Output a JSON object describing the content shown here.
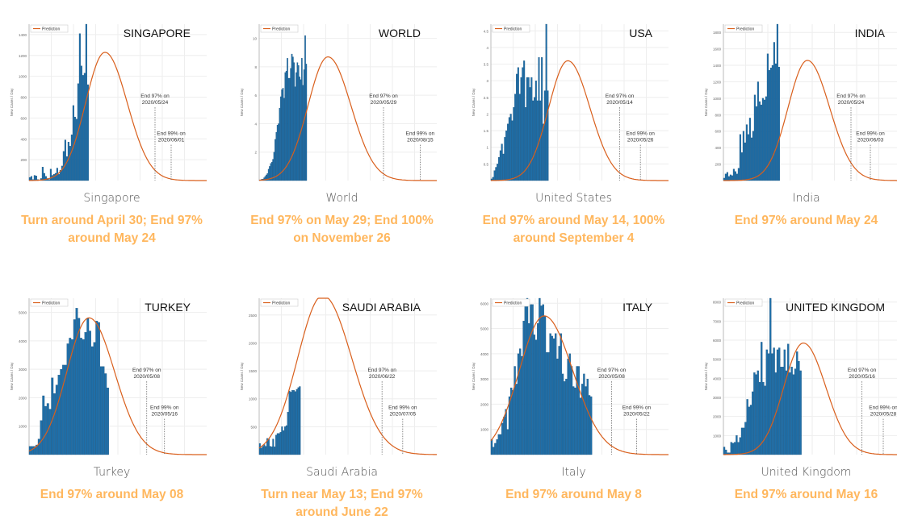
{
  "colors": {
    "bar": "#1f6fa9",
    "bar_edge": "#174f7a",
    "curve": "#d95f1c",
    "summary": "#ffb75e",
    "grid": "#eeeeee"
  },
  "chart_data": [
    {
      "type": "bar",
      "title": "SINGAPORE",
      "country": "Singapore",
      "summary": "Turn around April 30; End 97% around May 24",
      "legend": "Prediction",
      "ylabel": "New Cases / Day",
      "yticks": [
        200,
        400,
        600,
        800,
        1000,
        1200,
        1400
      ],
      "ylim": [
        0,
        1500
      ],
      "xdays": 110,
      "values": [
        30,
        40,
        10,
        50,
        45,
        10,
        0,
        20,
        130,
        70,
        40,
        20,
        10,
        110,
        50,
        60,
        70,
        120,
        60,
        100,
        140,
        280,
        390,
        230,
        370,
        330,
        440,
        720,
        610,
        590,
        930,
        1410,
        1100,
        1010,
        1030,
        1600,
        920
      ],
      "peak_day": 47,
      "peak_value": 1230,
      "sigma": 12,
      "end97": "2020/05/24",
      "end97_day": 78,
      "end99": "2020/06/01",
      "end99_day": 88,
      "end97_label": "End 97% on",
      "end99_label": "End 99% on"
    },
    {
      "type": "bar",
      "title": "WORLD",
      "country": "World",
      "summary": "End 97% on May 29; End 100% on November 26",
      "legend": "Prediction",
      "ylabel": "New Cases / Day",
      "yticks": [
        2,
        4,
        6,
        8,
        10
      ],
      "ylim": [
        0,
        11
      ],
      "xdays": 160,
      "values": [
        0.05,
        0.05,
        0.1,
        0.1,
        0.2,
        0.3,
        0.4,
        0.5,
        0.8,
        1.0,
        1.2,
        1.3,
        1.5,
        2.0,
        2.9,
        3.4,
        3.9,
        4.0,
        5.1,
        5.9,
        6.4,
        6.5,
        5.8,
        7.6,
        7.7,
        8.6,
        7.2,
        7.2,
        7.9,
        8.9,
        8.7,
        8.3,
        6.6,
        7.6,
        8.3,
        8.1,
        7.3,
        7.1,
        8.6,
        6.7,
        7.8,
        10.2,
        8.2
      ],
      "peak_day": 62,
      "peak_value": 8.7,
      "sigma": 18,
      "end97": "2020/05/29",
      "end97_day": 112,
      "end99": "2020/08/15",
      "end99_day": 145,
      "end97_label": "End 97% on",
      "end99_label": "End 99% on"
    },
    {
      "type": "bar",
      "title": "USA",
      "country": "United States",
      "summary": "End 97% around May 14, 100% around September 4",
      "legend": "Prediction",
      "ylabel": "New Cases / Day",
      "yticks": [
        0.5,
        1,
        1.5,
        2,
        2.5,
        3,
        3.5,
        4,
        4.5
      ],
      "ylim": [
        0,
        4.7
      ],
      "xdays": 120,
      "values": [
        0.05,
        0.1,
        0.3,
        0.4,
        0.5,
        0.7,
        0.9,
        1.1,
        0.8,
        1.3,
        1.5,
        1.7,
        1.9,
        2.0,
        1.8,
        2.2,
        2.6,
        3.2,
        3.4,
        2.6,
        3.1,
        3.4,
        3.6,
        2.2,
        3.1,
        3.1,
        2.8,
        3.1,
        2.4,
        2.5,
        3.0,
        2.4,
        3.7,
        2.4,
        3.7,
        1.7,
        2.7,
        4.8,
        2.7
      ],
      "peak_day": 52,
      "peak_value": 3.6,
      "sigma": 13,
      "end97": "2020/05/14",
      "end97_day": 87,
      "end99": "2020/05/26",
      "end99_day": 101,
      "end97_label": "End 97% on",
      "end99_label": "End 99% on"
    },
    {
      "type": "bar",
      "title": "INDIA",
      "country": "India",
      "summary": "End 97% around May 24",
      "legend": "Prediction",
      "ylabel": "New Cases / Day",
      "yticks": [
        200,
        400,
        600,
        800,
        1000,
        1200,
        1400,
        1600,
        1800
      ],
      "ylim": [
        0,
        1900
      ],
      "xdays": 110,
      "values": [
        30,
        80,
        100,
        50,
        70,
        60,
        140,
        110,
        80,
        150,
        560,
        340,
        600,
        460,
        680,
        560,
        760,
        520,
        600,
        1040,
        900,
        1200,
        960,
        920,
        1000,
        980,
        1020,
        1540,
        1340,
        1370,
        1400,
        1680,
        1420,
        1900,
        1380
      ],
      "peak_day": 52,
      "peak_value": 1460,
      "sigma": 12,
      "end97": "2020/05/24",
      "end97_day": 79,
      "end99": "2020/06/03",
      "end99_day": 91,
      "end97_label": "End 97% on",
      "end99_label": "End 99% on"
    },
    {
      "type": "bar",
      "title": "TURKEY",
      "country": "Turkey",
      "summary": "End 97% around May 08",
      "legend": "Prediction",
      "ylabel": "New Cases / Day",
      "yticks": [
        1000,
        2000,
        3000,
        4000,
        5000
      ],
      "ylim": [
        0,
        5500
      ],
      "xdays": 80,
      "values": [
        290,
        290,
        290,
        340,
        550,
        1200,
        2070,
        1700,
        1800,
        1600,
        2700,
        2150,
        2450,
        2800,
        3000,
        3150,
        3150,
        3900,
        4100,
        4050,
        4750,
        5150,
        4800,
        4100,
        4050,
        4300,
        4800,
        4350,
        3800,
        3950,
        4700,
        4650,
        3100,
        3100,
        2850,
        2350
      ],
      "peak_day": 27,
      "peak_value": 4810,
      "sigma": 10,
      "end97": "2020/05/08",
      "end97_day": 53,
      "end99": "2020/05/16",
      "end99_day": 61,
      "end97_label": "End 97% on",
      "end99_label": "End 99% on"
    },
    {
      "type": "bar",
      "title": "SAUDI ARABIA",
      "country": "Saudi Arabia",
      "summary": "Turn near May 13; End 97% around June 22",
      "legend": "Prediction",
      "ylabel": "New Cases / Day",
      "yticks": [
        500,
        1000,
        1500,
        2000,
        2500
      ],
      "ylim": [
        0,
        2800
      ],
      "xdays": 120,
      "values": [
        200,
        120,
        150,
        180,
        150,
        290,
        280,
        150,
        140,
        280,
        140,
        350,
        380,
        380,
        400,
        500,
        430,
        500,
        520,
        760,
        1140,
        1120,
        1150,
        1150,
        1130,
        1170,
        1200,
        1220
      ],
      "peak_day": 43,
      "peak_value": 2850,
      "sigma": 17,
      "end97": "2020/06/22",
      "end97_day": 83,
      "end99": "2020/07/05",
      "end99_day": 97,
      "end97_label": "End 97% on",
      "end99_label": "End 99% on"
    },
    {
      "type": "bar",
      "title": "ITALY",
      "country": "Italy",
      "summary": "End 97% around May 8",
      "legend": "Prediction",
      "ylabel": "New Cases / Day",
      "yticks": [
        1000,
        2000,
        3000,
        4000,
        5000,
        6000
      ],
      "ylim": [
        0,
        6200
      ],
      "xdays": 100,
      "values": [
        600,
        300,
        450,
        600,
        800,
        800,
        1250,
        1500,
        1800,
        1000,
        2300,
        2650,
        2550,
        3500,
        2800,
        4000,
        4200,
        3900,
        5300,
        5900,
        6550,
        5200,
        5950,
        5950,
        4750,
        4550,
        5200,
        6200,
        5900,
        5950,
        5500,
        4050,
        4050,
        4800,
        4700,
        4600,
        4800,
        3800,
        4300,
        4800,
        3200,
        2900,
        3000,
        3800,
        4000,
        3500,
        2700,
        2650,
        3500,
        3500,
        2250,
        2800,
        3200,
        2700,
        3000,
        2350,
        2300
      ],
      "peak_day": 30,
      "peak_value": 5500,
      "sigma": 14,
      "end97": "2020/05/08",
      "end97_day": 68,
      "end99": "2020/05/22",
      "end99_day": 82,
      "end97_label": "End 97% on",
      "end99_label": "End 99% on"
    },
    {
      "type": "bar",
      "title": "UNITED KINGDOM",
      "country": "United Kingdom",
      "summary": "End 97% around May 16",
      "legend": "Prediction",
      "ylabel": "New Cases / Day",
      "yticks": [
        1000,
        2000,
        3000,
        4000,
        5000,
        6000,
        7000,
        8000
      ],
      "ylim": [
        0,
        8200
      ],
      "xdays": 100,
      "values": [
        400,
        250,
        100,
        100,
        650,
        600,
        650,
        1000,
        650,
        900,
        1400,
        1400,
        1700,
        2900,
        2500,
        2600,
        3300,
        4300,
        4200,
        4400,
        3800,
        5900,
        3800,
        3600,
        5500,
        5300,
        8700,
        5300,
        5600,
        4300,
        5500,
        5600,
        4600,
        4600,
        5500,
        4400,
        5800,
        4300,
        4600,
        4200,
        4500,
        5400,
        4900,
        4400
      ],
      "peak_day": 45,
      "peak_value": 5850,
      "sigma": 11,
      "end97": "2020/05/16",
      "end97_day": 78,
      "end99": "2020/05/28",
      "end99_day": 90,
      "end97_label": "End 97% on",
      "end99_label": "End 99% on"
    }
  ]
}
